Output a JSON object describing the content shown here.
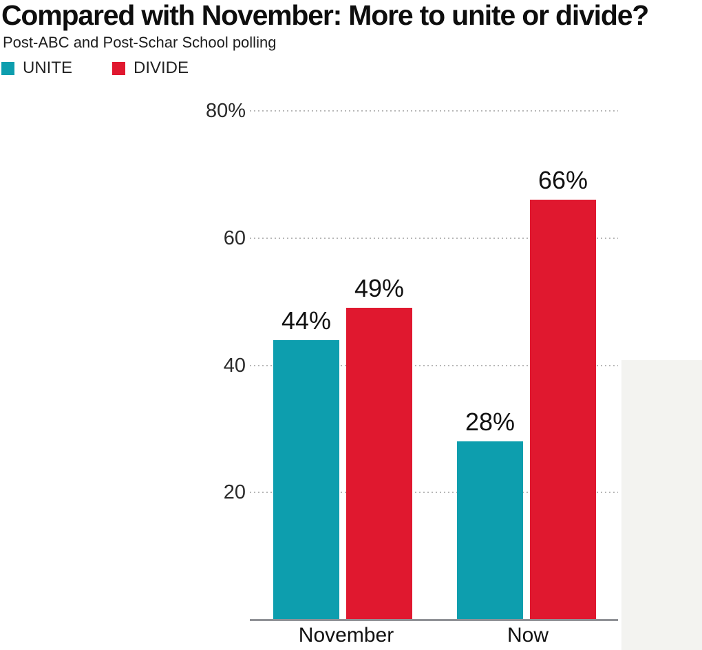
{
  "title": "Compared with November: More to unite or divide?",
  "subtitle": "Post-ABC and Post-Schar School polling",
  "chart_data": {
    "type": "bar",
    "title": "Compared with November: More to unite or divide?",
    "subtitle": "Post-ABC and Post-Schar School polling",
    "categories": [
      "November",
      "Now"
    ],
    "series": [
      {
        "name": "UNITE",
        "color": "#0D9EAE",
        "values": [
          44,
          28
        ],
        "labels": [
          "44%",
          "28%"
        ]
      },
      {
        "name": "DIVIDE",
        "color": "#E0182F",
        "values": [
          49,
          66
        ],
        "labels": [
          "49%",
          "66%"
        ]
      }
    ],
    "y_axis": {
      "range": [
        0,
        80
      ],
      "ticks": [
        {
          "value": 80,
          "label": "80%"
        },
        {
          "value": 60,
          "label": "60"
        },
        {
          "value": 40,
          "label": "40"
        },
        {
          "value": 20,
          "label": "20"
        }
      ],
      "gridlines": "dotted"
    },
    "legend_position": "top-left",
    "bar_value_labels": true
  },
  "colors": {
    "unite": "#0D9EAE",
    "divide": "#E0182F",
    "gridline": "#b7b7b7",
    "axis_line": "#909297",
    "side_panel": "#f3f3f0",
    "text": "#111111"
  }
}
